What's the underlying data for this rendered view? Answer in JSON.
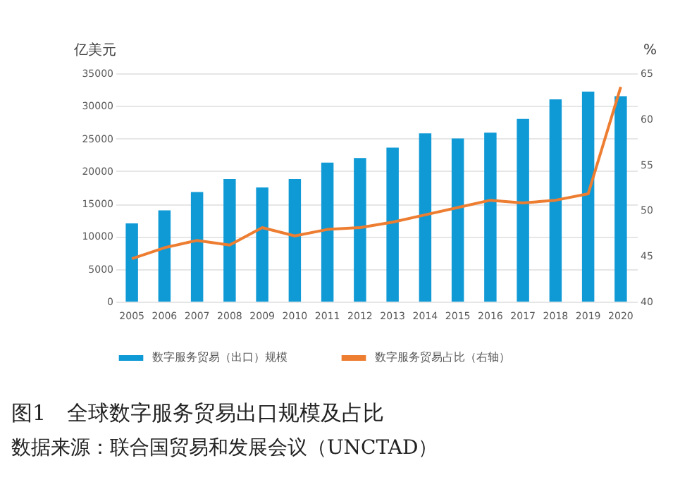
{
  "chart_data": {
    "type": "bar",
    "title": "图1　全球数字服务贸易出口规模及占比",
    "subtitle": "数据来源：联合国贸易和发展会议（UNCTAD）",
    "ylabel": "亿美元",
    "y2label": "%",
    "categories": [
      "2005",
      "2006",
      "2007",
      "2008",
      "2009",
      "2010",
      "2011",
      "2012",
      "2013",
      "2014",
      "2015",
      "2016",
      "2017",
      "2018",
      "2019",
      "2020"
    ],
    "series": [
      {
        "name": "数字服务贸易（出口）规模",
        "color": "#0f9ad6",
        "values": [
          12000,
          14000,
          16800,
          18800,
          17500,
          18800,
          21300,
          22000,
          23600,
          25800,
          25000,
          25900,
          28000,
          31000,
          32200,
          31500
        ]
      },
      {
        "name": "数字服务贸易占比（右轴）",
        "type": "line",
        "axis": "y2",
        "color": "#ed7d31",
        "values": [
          44.7,
          45.9,
          46.7,
          46.2,
          48.1,
          47.2,
          47.9,
          48.1,
          48.7,
          49.5,
          50.3,
          51.1,
          50.8,
          51.1,
          51.8,
          63.5
        ]
      }
    ],
    "ylim": [
      0,
      35000
    ],
    "yticks": [
      0,
      5000,
      10000,
      15000,
      20000,
      25000,
      30000,
      35000
    ],
    "y2lim": [
      40,
      65
    ],
    "y2ticks": [
      40,
      45,
      50,
      55,
      60,
      65
    ],
    "grid": "y",
    "legend": "bottom",
    "marker": "none"
  }
}
